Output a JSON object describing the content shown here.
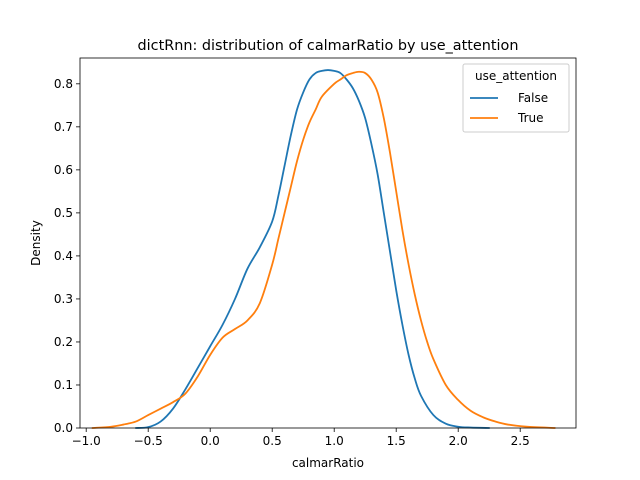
{
  "chart_data": {
    "type": "line",
    "title": "dictRnn: distribution of calmarRatio by use_attention",
    "xlabel": "calmarRatio",
    "ylabel": "Density",
    "xlim": [
      -1.05,
      2.95
    ],
    "ylim": [
      0,
      0.86
    ],
    "xticks": [
      -1.0,
      -0.5,
      0.0,
      0.5,
      1.0,
      1.5,
      2.0,
      2.5
    ],
    "xtick_labels": [
      "−1.0",
      "−0.5",
      "0.0",
      "0.5",
      "1.0",
      "1.5",
      "2.0",
      "2.5"
    ],
    "yticks": [
      0.0,
      0.1,
      0.2,
      0.3,
      0.4,
      0.5,
      0.6,
      0.7,
      0.8
    ],
    "ytick_labels": [
      "0.0",
      "0.1",
      "0.2",
      "0.3",
      "0.4",
      "0.5",
      "0.6",
      "0.7",
      "0.8"
    ],
    "grid": false,
    "legend": {
      "title": "use_attention",
      "placement": "top-right"
    },
    "series": [
      {
        "name": "False",
        "color": "#1f77b4",
        "points": [
          [
            -0.6,
            0.0
          ],
          [
            -0.5,
            0.002
          ],
          [
            -0.4,
            0.015
          ],
          [
            -0.3,
            0.045
          ],
          [
            -0.2,
            0.09
          ],
          [
            -0.1,
            0.14
          ],
          [
            0.0,
            0.19
          ],
          [
            0.1,
            0.24
          ],
          [
            0.2,
            0.3
          ],
          [
            0.3,
            0.37
          ],
          [
            0.4,
            0.42
          ],
          [
            0.5,
            0.48
          ],
          [
            0.55,
            0.54
          ],
          [
            0.6,
            0.61
          ],
          [
            0.65,
            0.68
          ],
          [
            0.7,
            0.74
          ],
          [
            0.75,
            0.78
          ],
          [
            0.8,
            0.81
          ],
          [
            0.85,
            0.825
          ],
          [
            0.9,
            0.83
          ],
          [
            0.95,
            0.832
          ],
          [
            1.0,
            0.83
          ],
          [
            1.05,
            0.825
          ],
          [
            1.1,
            0.81
          ],
          [
            1.15,
            0.79
          ],
          [
            1.2,
            0.76
          ],
          [
            1.25,
            0.72
          ],
          [
            1.3,
            0.66
          ],
          [
            1.35,
            0.59
          ],
          [
            1.4,
            0.5
          ],
          [
            1.45,
            0.41
          ],
          [
            1.5,
            0.32
          ],
          [
            1.55,
            0.24
          ],
          [
            1.6,
            0.17
          ],
          [
            1.65,
            0.115
          ],
          [
            1.7,
            0.075
          ],
          [
            1.8,
            0.03
          ],
          [
            1.9,
            0.01
          ],
          [
            2.0,
            0.003
          ],
          [
            2.1,
            0.001
          ],
          [
            2.25,
            0.0
          ]
        ]
      },
      {
        "name": "True",
        "color": "#ff7f0e",
        "points": [
          [
            -0.95,
            0.0
          ],
          [
            -0.8,
            0.003
          ],
          [
            -0.7,
            0.008
          ],
          [
            -0.6,
            0.015
          ],
          [
            -0.5,
            0.03
          ],
          [
            -0.4,
            0.045
          ],
          [
            -0.3,
            0.06
          ],
          [
            -0.2,
            0.08
          ],
          [
            -0.1,
            0.12
          ],
          [
            0.0,
            0.17
          ],
          [
            0.1,
            0.21
          ],
          [
            0.2,
            0.23
          ],
          [
            0.3,
            0.25
          ],
          [
            0.4,
            0.29
          ],
          [
            0.5,
            0.38
          ],
          [
            0.55,
            0.44
          ],
          [
            0.6,
            0.5
          ],
          [
            0.65,
            0.56
          ],
          [
            0.7,
            0.62
          ],
          [
            0.75,
            0.67
          ],
          [
            0.8,
            0.71
          ],
          [
            0.85,
            0.74
          ],
          [
            0.9,
            0.77
          ],
          [
            1.0,
            0.8
          ],
          [
            1.05,
            0.81
          ],
          [
            1.1,
            0.82
          ],
          [
            1.15,
            0.825
          ],
          [
            1.2,
            0.828
          ],
          [
            1.25,
            0.825
          ],
          [
            1.3,
            0.81
          ],
          [
            1.35,
            0.78
          ],
          [
            1.4,
            0.72
          ],
          [
            1.45,
            0.64
          ],
          [
            1.5,
            0.55
          ],
          [
            1.55,
            0.46
          ],
          [
            1.6,
            0.38
          ],
          [
            1.65,
            0.31
          ],
          [
            1.7,
            0.25
          ],
          [
            1.75,
            0.2
          ],
          [
            1.8,
            0.16
          ],
          [
            1.9,
            0.1
          ],
          [
            2.0,
            0.065
          ],
          [
            2.1,
            0.04
          ],
          [
            2.2,
            0.025
          ],
          [
            2.3,
            0.015
          ],
          [
            2.4,
            0.008
          ],
          [
            2.55,
            0.003
          ],
          [
            2.78,
            0.0
          ]
        ]
      }
    ]
  }
}
